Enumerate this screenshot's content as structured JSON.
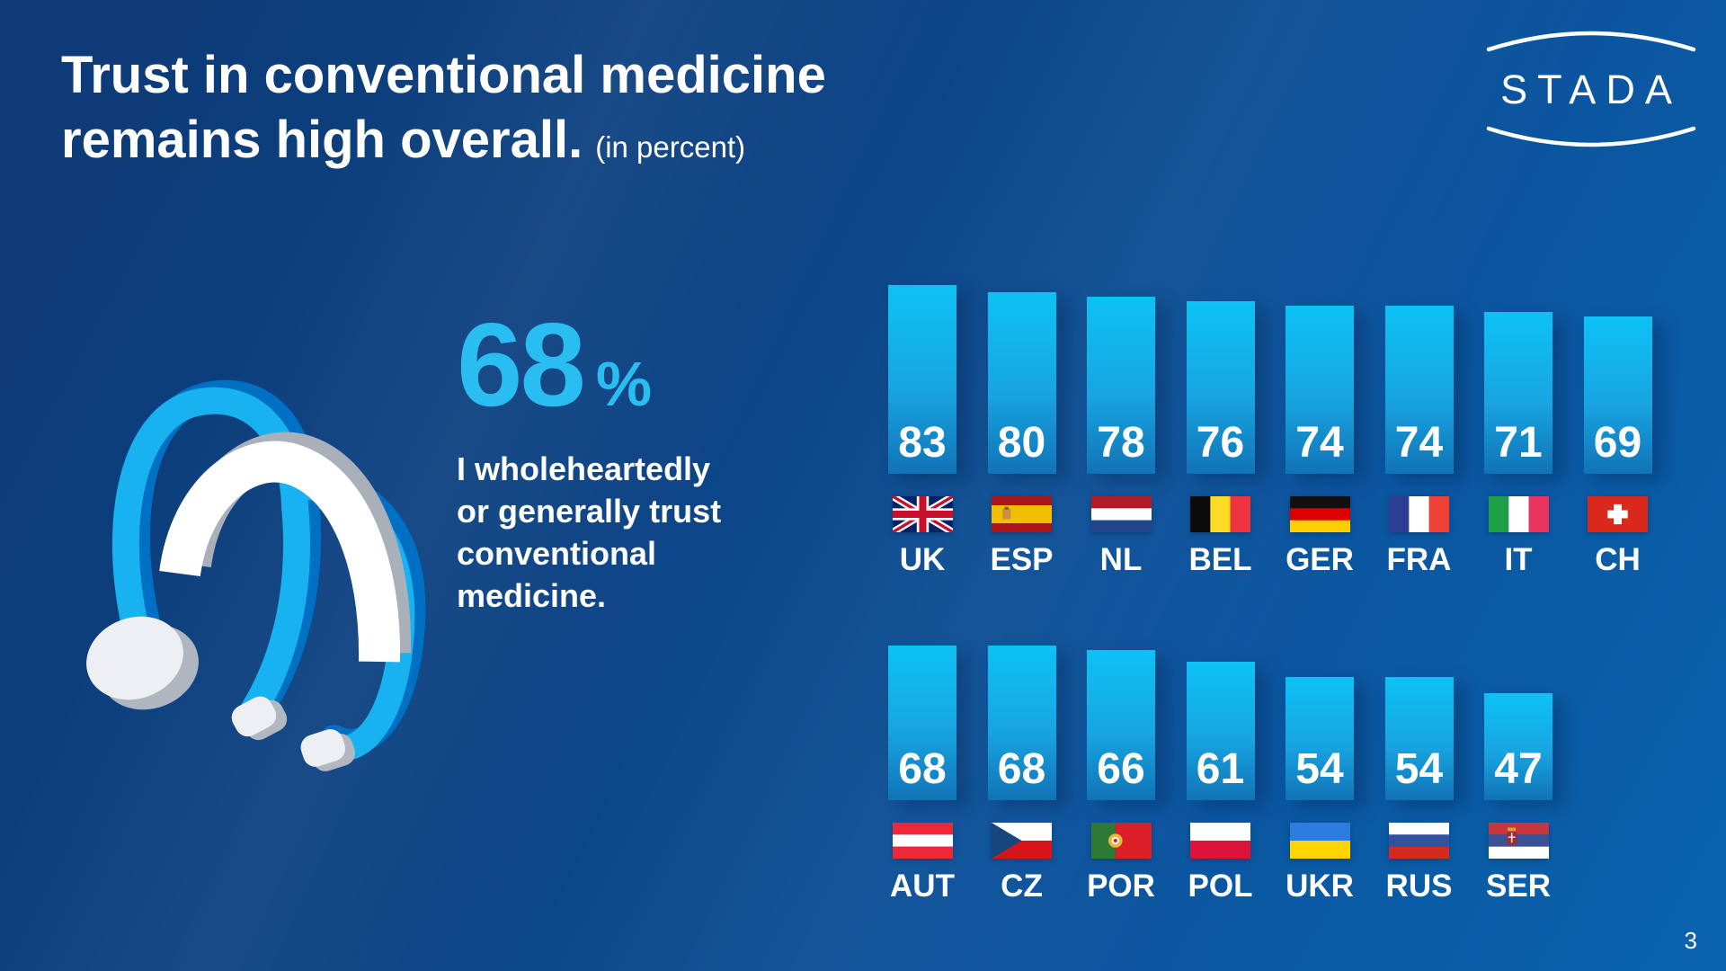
{
  "page": {
    "title_line1": "Trust in conventional medicine",
    "title_line2": "remains high overall.",
    "title_suffix": "(in percent)",
    "page_number": "3"
  },
  "logo": {
    "text": "STADA"
  },
  "stat": {
    "value": "68",
    "unit": "%",
    "description": "I wholeheartedly\nor generally trust\nconventional\nmedicine."
  },
  "chart_data": {
    "type": "bar",
    "title": "Trust in conventional medicine remains high overall.",
    "unit": "percent",
    "ylim": [
      0,
      100
    ],
    "grid": false,
    "legend": false,
    "value_labels": "inside-bottom",
    "rows": [
      {
        "categories": [
          "UK",
          "ESP",
          "NL",
          "BEL",
          "GER",
          "FRA",
          "IT",
          "CH"
        ],
        "values": [
          83,
          80,
          78,
          76,
          74,
          74,
          71,
          69
        ],
        "flags": [
          "uk",
          "esp",
          "nl",
          "bel",
          "ger",
          "fra",
          "it",
          "ch"
        ]
      },
      {
        "categories": [
          "AUT",
          "CZ",
          "POR",
          "POL",
          "UKR",
          "RUS",
          "SER"
        ],
        "values": [
          68,
          68,
          66,
          61,
          54,
          54,
          47
        ],
        "flags": [
          "aut",
          "cz",
          "por",
          "pol",
          "ukr",
          "rus",
          "ser"
        ]
      }
    ]
  },
  "colors": {
    "background_top_left": "#0d3a76",
    "background_bottom_right": "#0a63ad",
    "accent_cyan": "#29bdf2",
    "bar_top": "#0cc2f5",
    "bar_bottom": "#1173b6",
    "text": "#ffffff"
  }
}
